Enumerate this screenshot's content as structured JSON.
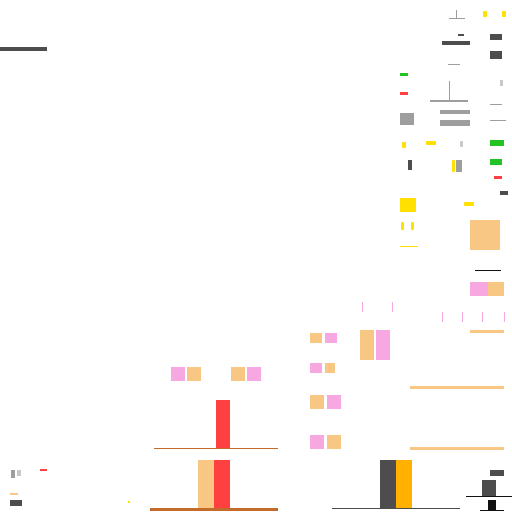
{
  "palette": {
    "gray_dark": "#4d4d4d",
    "gray_mid": "#9e9e9e",
    "gray_light": "#c8c8c8",
    "yellow": "#ffe000",
    "orange": "#ffb000",
    "peach": "#f9c784",
    "pink": "#f7a8e0",
    "red": "#ff4040",
    "green": "#22c322",
    "brown": "#c46a2b",
    "black": "#111111"
  },
  "bars_middle": {
    "values": [
      1
    ],
    "color": "#ff4040"
  },
  "bars_bottom_middle": {
    "colors": [
      "#f9c784",
      "#ff4040"
    ]
  },
  "bars_bottom_right": {
    "colors": [
      "#4d4d4d",
      "#ffb000"
    ]
  }
}
